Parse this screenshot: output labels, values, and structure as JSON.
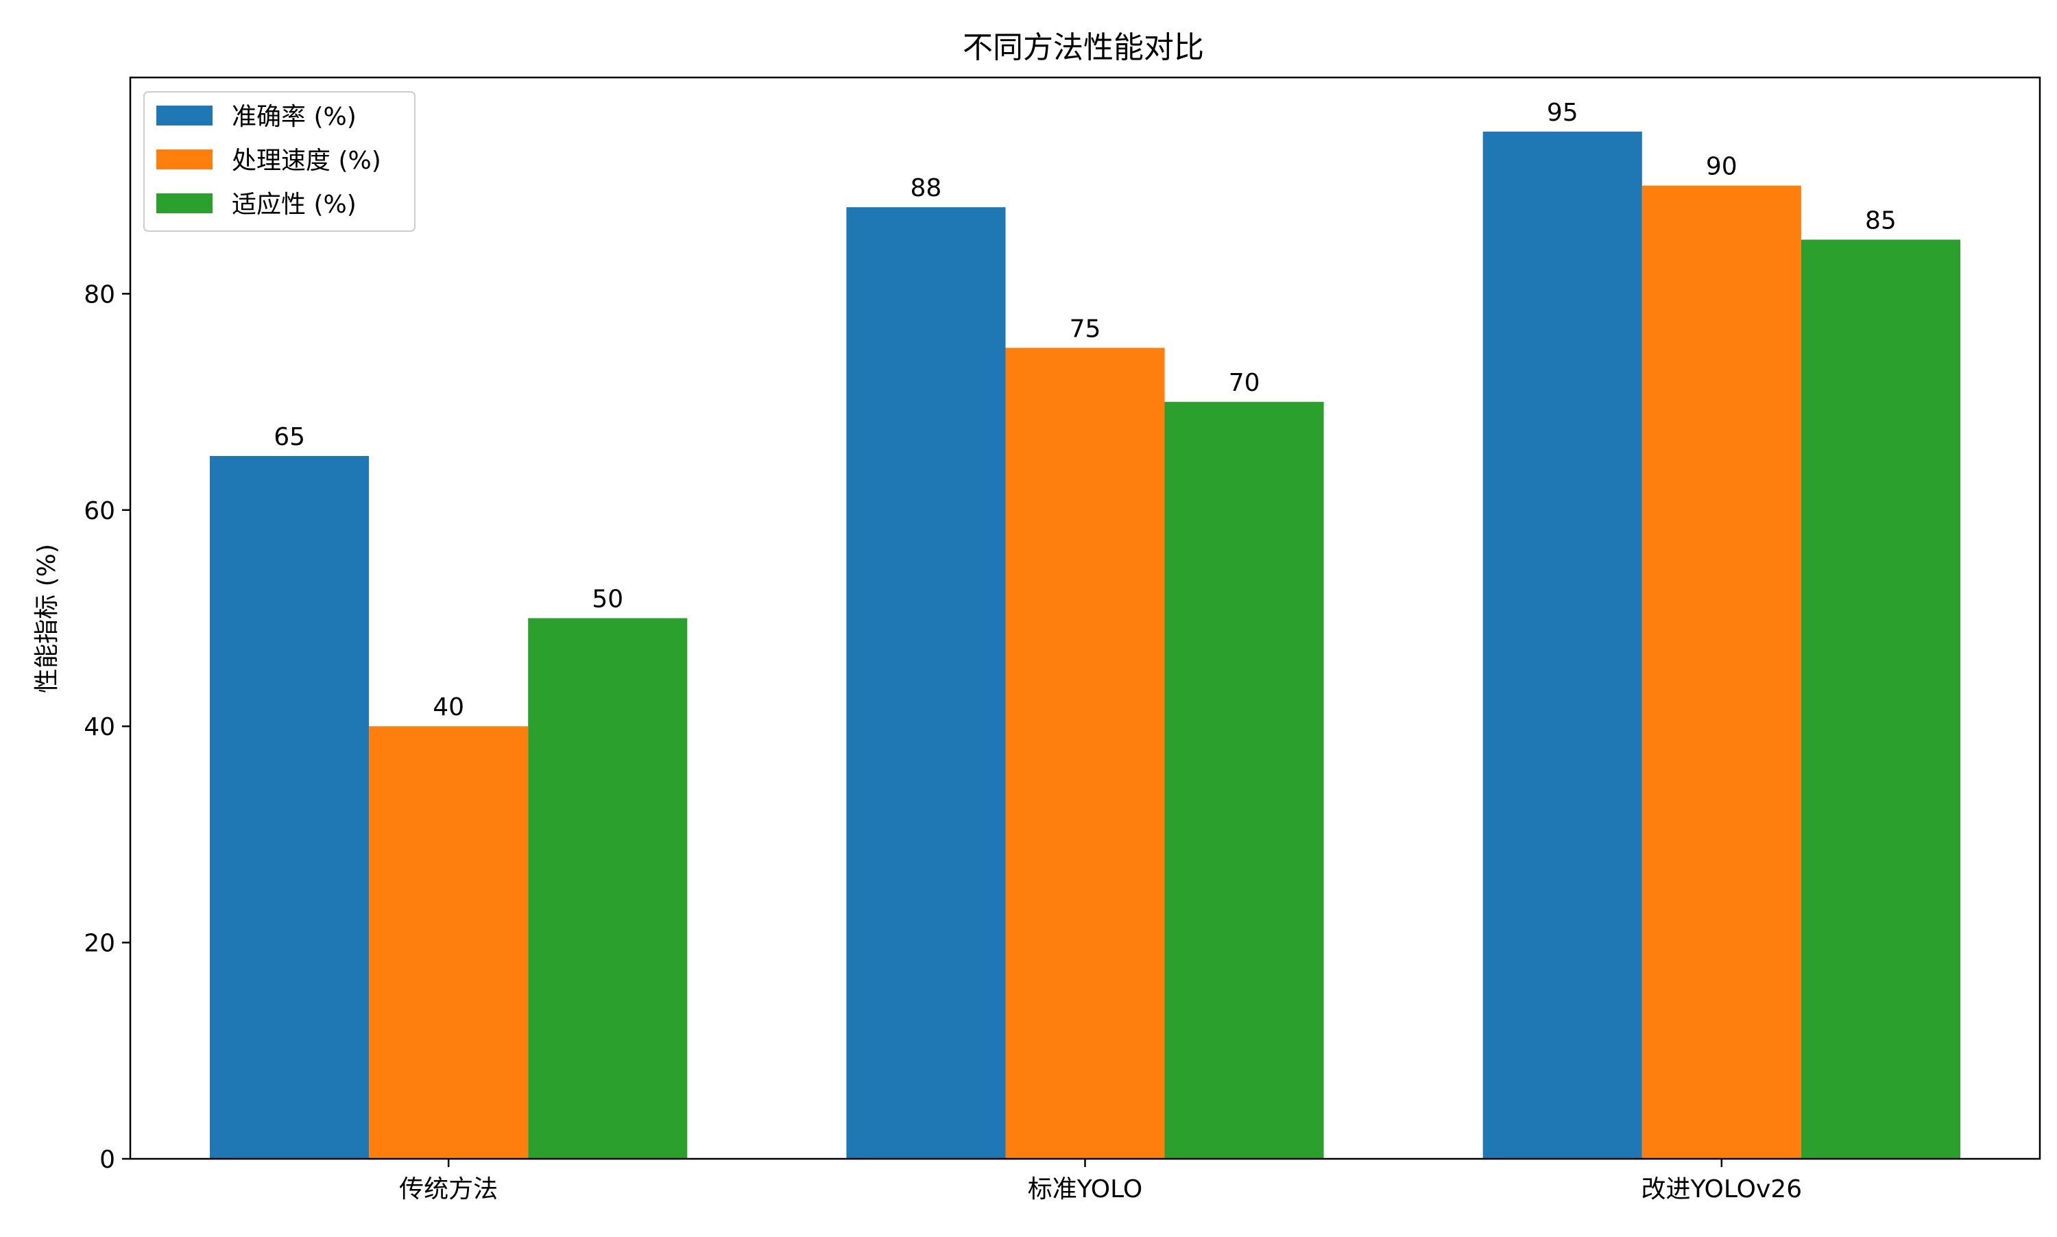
{
  "chart_data": {
    "type": "bar",
    "title": "不同方法性能对比",
    "xlabel": "",
    "ylabel": "性能指标 (%)",
    "categories": [
      "传统方法",
      "标准YOLO",
      "改进YOLOv26"
    ],
    "series": [
      {
        "name": "准确率 (%)",
        "color": "#1f77b4",
        "values": [
          65,
          88,
          95
        ]
      },
      {
        "name": "处理速度 (%)",
        "color": "#ff7f0e",
        "values": [
          40,
          75,
          90
        ]
      },
      {
        "name": "适应性 (%)",
        "color": "#2ca02c",
        "values": [
          50,
          70,
          85
        ]
      }
    ],
    "ylim": [
      0,
      100
    ],
    "yticks": [
      0,
      20,
      40,
      60,
      80
    ],
    "grid": false,
    "legend_position": "top-left",
    "data_labels": true
  }
}
